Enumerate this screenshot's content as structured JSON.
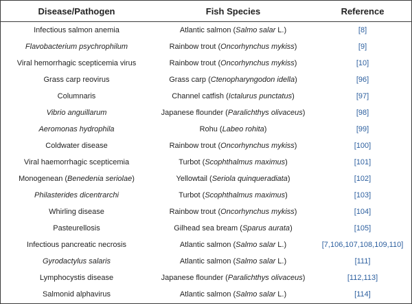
{
  "headers": [
    "Disease/Pathogen",
    "Fish Species",
    "Reference"
  ],
  "rows": [
    {
      "disease": "Infectious salmon anemia",
      "disease_italic": false,
      "species_common": "Atlantic salmon",
      "species_sci": "Salmo salar",
      "species_suffix": " L.",
      "refs": [
        "8"
      ]
    },
    {
      "disease": "Flavobacterium psychrophilum",
      "disease_italic": true,
      "species_common": "Rainbow trout",
      "species_sci": "Oncorhynchus mykiss",
      "species_suffix": "",
      "refs": [
        "9"
      ]
    },
    {
      "disease": "Viral hemorrhagic scepticemia virus",
      "disease_italic": false,
      "species_common": "Rainbow trout",
      "species_sci": "Oncorhynchus mykiss",
      "species_suffix": "",
      "refs": [
        "10"
      ]
    },
    {
      "disease": "Grass carp reovirus",
      "disease_italic": false,
      "species_common": "Grass carp",
      "species_sci": "Ctenopharyngodon idella",
      "species_suffix": "",
      "refs": [
        "96"
      ]
    },
    {
      "disease": "Columnaris",
      "disease_italic": false,
      "species_common": "Channel catfish",
      "species_sci": "Ictalurus punctatus",
      "species_suffix": "",
      "refs": [
        "97"
      ]
    },
    {
      "disease": "Vibrio anguillarum",
      "disease_italic": true,
      "species_common": "Japanese flounder",
      "species_sci": "Paralichthys olivaceus",
      "species_suffix": "",
      "refs": [
        "98"
      ]
    },
    {
      "disease": "Aeromonas hydrophila",
      "disease_italic": true,
      "species_common": "Rohu",
      "species_sci": "Labeo rohita",
      "species_suffix": "",
      "refs": [
        "99"
      ]
    },
    {
      "disease": "Coldwater disease",
      "disease_italic": false,
      "species_common": "Rainbow trout",
      "species_sci": "Oncorhynchus mykiss",
      "species_suffix": "",
      "refs": [
        "100"
      ]
    },
    {
      "disease": "Viral haemorrhagic scepticemia",
      "disease_italic": false,
      "species_common": "Turbot",
      "species_sci": "Scophthalmus maximus",
      "species_suffix": "",
      "refs": [
        "101"
      ]
    },
    {
      "disease": "Monogenean (Benedenia seriolae)",
      "disease_italic": false,
      "disease_prefix": "Monogenean (",
      "disease_inner_italic": "Benedenia seriolae",
      "disease_postfix": ")",
      "species_common": "Yellowtail",
      "species_sci": "Seriola quinqueradiata",
      "species_suffix": "",
      "refs": [
        "102"
      ]
    },
    {
      "disease": "Philasterides dicentrarchi",
      "disease_italic": true,
      "species_common": "Turbot",
      "species_sci": "Scophthalmus maximus",
      "species_suffix": "",
      "refs": [
        "103"
      ]
    },
    {
      "disease": "Whirling disease",
      "disease_italic": false,
      "species_common": "Rainbow trout",
      "species_sci": "Oncorhynchus mykiss",
      "species_suffix": "",
      "refs": [
        "104"
      ]
    },
    {
      "disease": "Pasteurellosis",
      "disease_italic": false,
      "species_common": "Gilhead sea bream",
      "species_sci": "Sparus aurata",
      "species_suffix": "",
      "refs": [
        "105"
      ]
    },
    {
      "disease": "Infectious pancreatic necrosis",
      "disease_italic": false,
      "species_common": "Atlantic salmon",
      "species_sci": "Salmo salar",
      "species_suffix": " L.",
      "refs": [
        "7",
        "106",
        "107",
        "108",
        "109",
        "110"
      ]
    },
    {
      "disease": "Gyrodactylus salaris",
      "disease_italic": true,
      "species_common": "Atlantic salmon",
      "species_sci": "Salmo salar",
      "species_suffix": " L.",
      "refs": [
        "111"
      ]
    },
    {
      "disease": "Lymphocystis disease",
      "disease_italic": false,
      "species_common": "Japanese flounder",
      "species_sci": "Paralichthys olivaceus",
      "species_suffix": "",
      "refs": [
        "112",
        "113"
      ]
    },
    {
      "disease": "Salmonid alphavirus",
      "disease_italic": false,
      "species_common": "Atlantic salmon",
      "species_sci": "Salmo salar",
      "species_suffix": " L.",
      "refs": [
        "114"
      ]
    }
  ],
  "colors": {
    "reference_link": "#2b5e9e",
    "text": "#222222",
    "border": "#3a3a3a"
  }
}
